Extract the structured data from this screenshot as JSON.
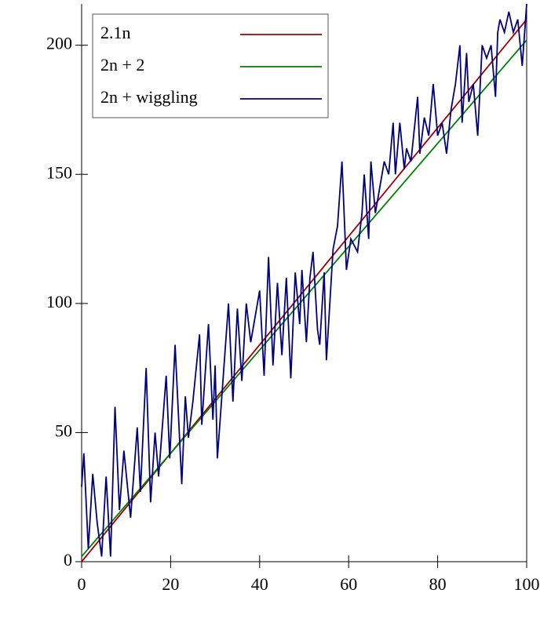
{
  "chart_data": {
    "type": "line",
    "xlim": [
      0,
      100
    ],
    "ylim": [
      0,
      216
    ],
    "xticks": [
      0,
      20,
      40,
      60,
      80,
      100
    ],
    "yticks": [
      0,
      50,
      100,
      150,
      200
    ],
    "legend": "upper left",
    "series": [
      {
        "name": "2.1n",
        "color": "#a00000",
        "x": [
          0,
          100
        ],
        "values": [
          0,
          210
        ]
      },
      {
        "name": "2n + 2",
        "color": "#008000",
        "x": [
          0,
          100
        ],
        "values": [
          2,
          202
        ]
      },
      {
        "name": "2n + wiggling",
        "color": "#00007f",
        "x": [
          0,
          0.5,
          1.5,
          2.5,
          3.5,
          4.5,
          5.5,
          6.5,
          7.5,
          8.5,
          9.5,
          11,
          12.5,
          13.2,
          14.5,
          15.5,
          16.5,
          17.3,
          19,
          19.8,
          21,
          22.5,
          23.3,
          24,
          25,
          26.5,
          27,
          28.5,
          29.5,
          30,
          30.5,
          33,
          34,
          35,
          36,
          37,
          38,
          40,
          41,
          42,
          43,
          44,
          45,
          46,
          47,
          48,
          49,
          49.5,
          50.5,
          51.3,
          52,
          53,
          53.5,
          54.5,
          55,
          56.5,
          57.5,
          58.5,
          59.5,
          60.5,
          62,
          63,
          63.5,
          64.5,
          65,
          66,
          67,
          68,
          69,
          70,
          70.5,
          71.5,
          72.5,
          73,
          74,
          75.5,
          76,
          77,
          78,
          79,
          80,
          81,
          82,
          83,
          84,
          85,
          85.5,
          86.5,
          87,
          88,
          89,
          90,
          91,
          92,
          93,
          93.5,
          94,
          95,
          96,
          97,
          98,
          99,
          100
        ],
        "values": [
          29,
          42,
          5,
          34,
          15,
          2,
          33,
          2,
          60,
          20,
          43,
          17,
          52,
          27,
          75,
          23,
          50,
          33,
          72,
          40,
          84,
          30,
          64,
          48,
          62,
          88,
          53,
          92,
          55,
          76,
          40,
          100,
          62,
          98,
          70,
          100,
          85,
          105,
          72,
          118,
          76,
          108,
          80,
          110,
          71,
          112,
          92,
          113,
          85,
          110,
          120,
          90,
          84,
          112,
          78,
          121,
          130,
          155,
          113,
          125,
          120,
          135,
          150,
          125,
          155,
          135,
          145,
          155,
          150,
          170,
          150,
          170,
          152,
          160,
          155,
          180,
          158,
          172,
          165,
          185,
          165,
          170,
          158,
          175,
          185,
          200,
          170,
          197,
          178,
          185,
          165,
          200,
          195,
          200,
          180,
          205,
          210,
          205,
          213,
          205,
          210,
          192,
          216
        ]
      }
    ]
  }
}
